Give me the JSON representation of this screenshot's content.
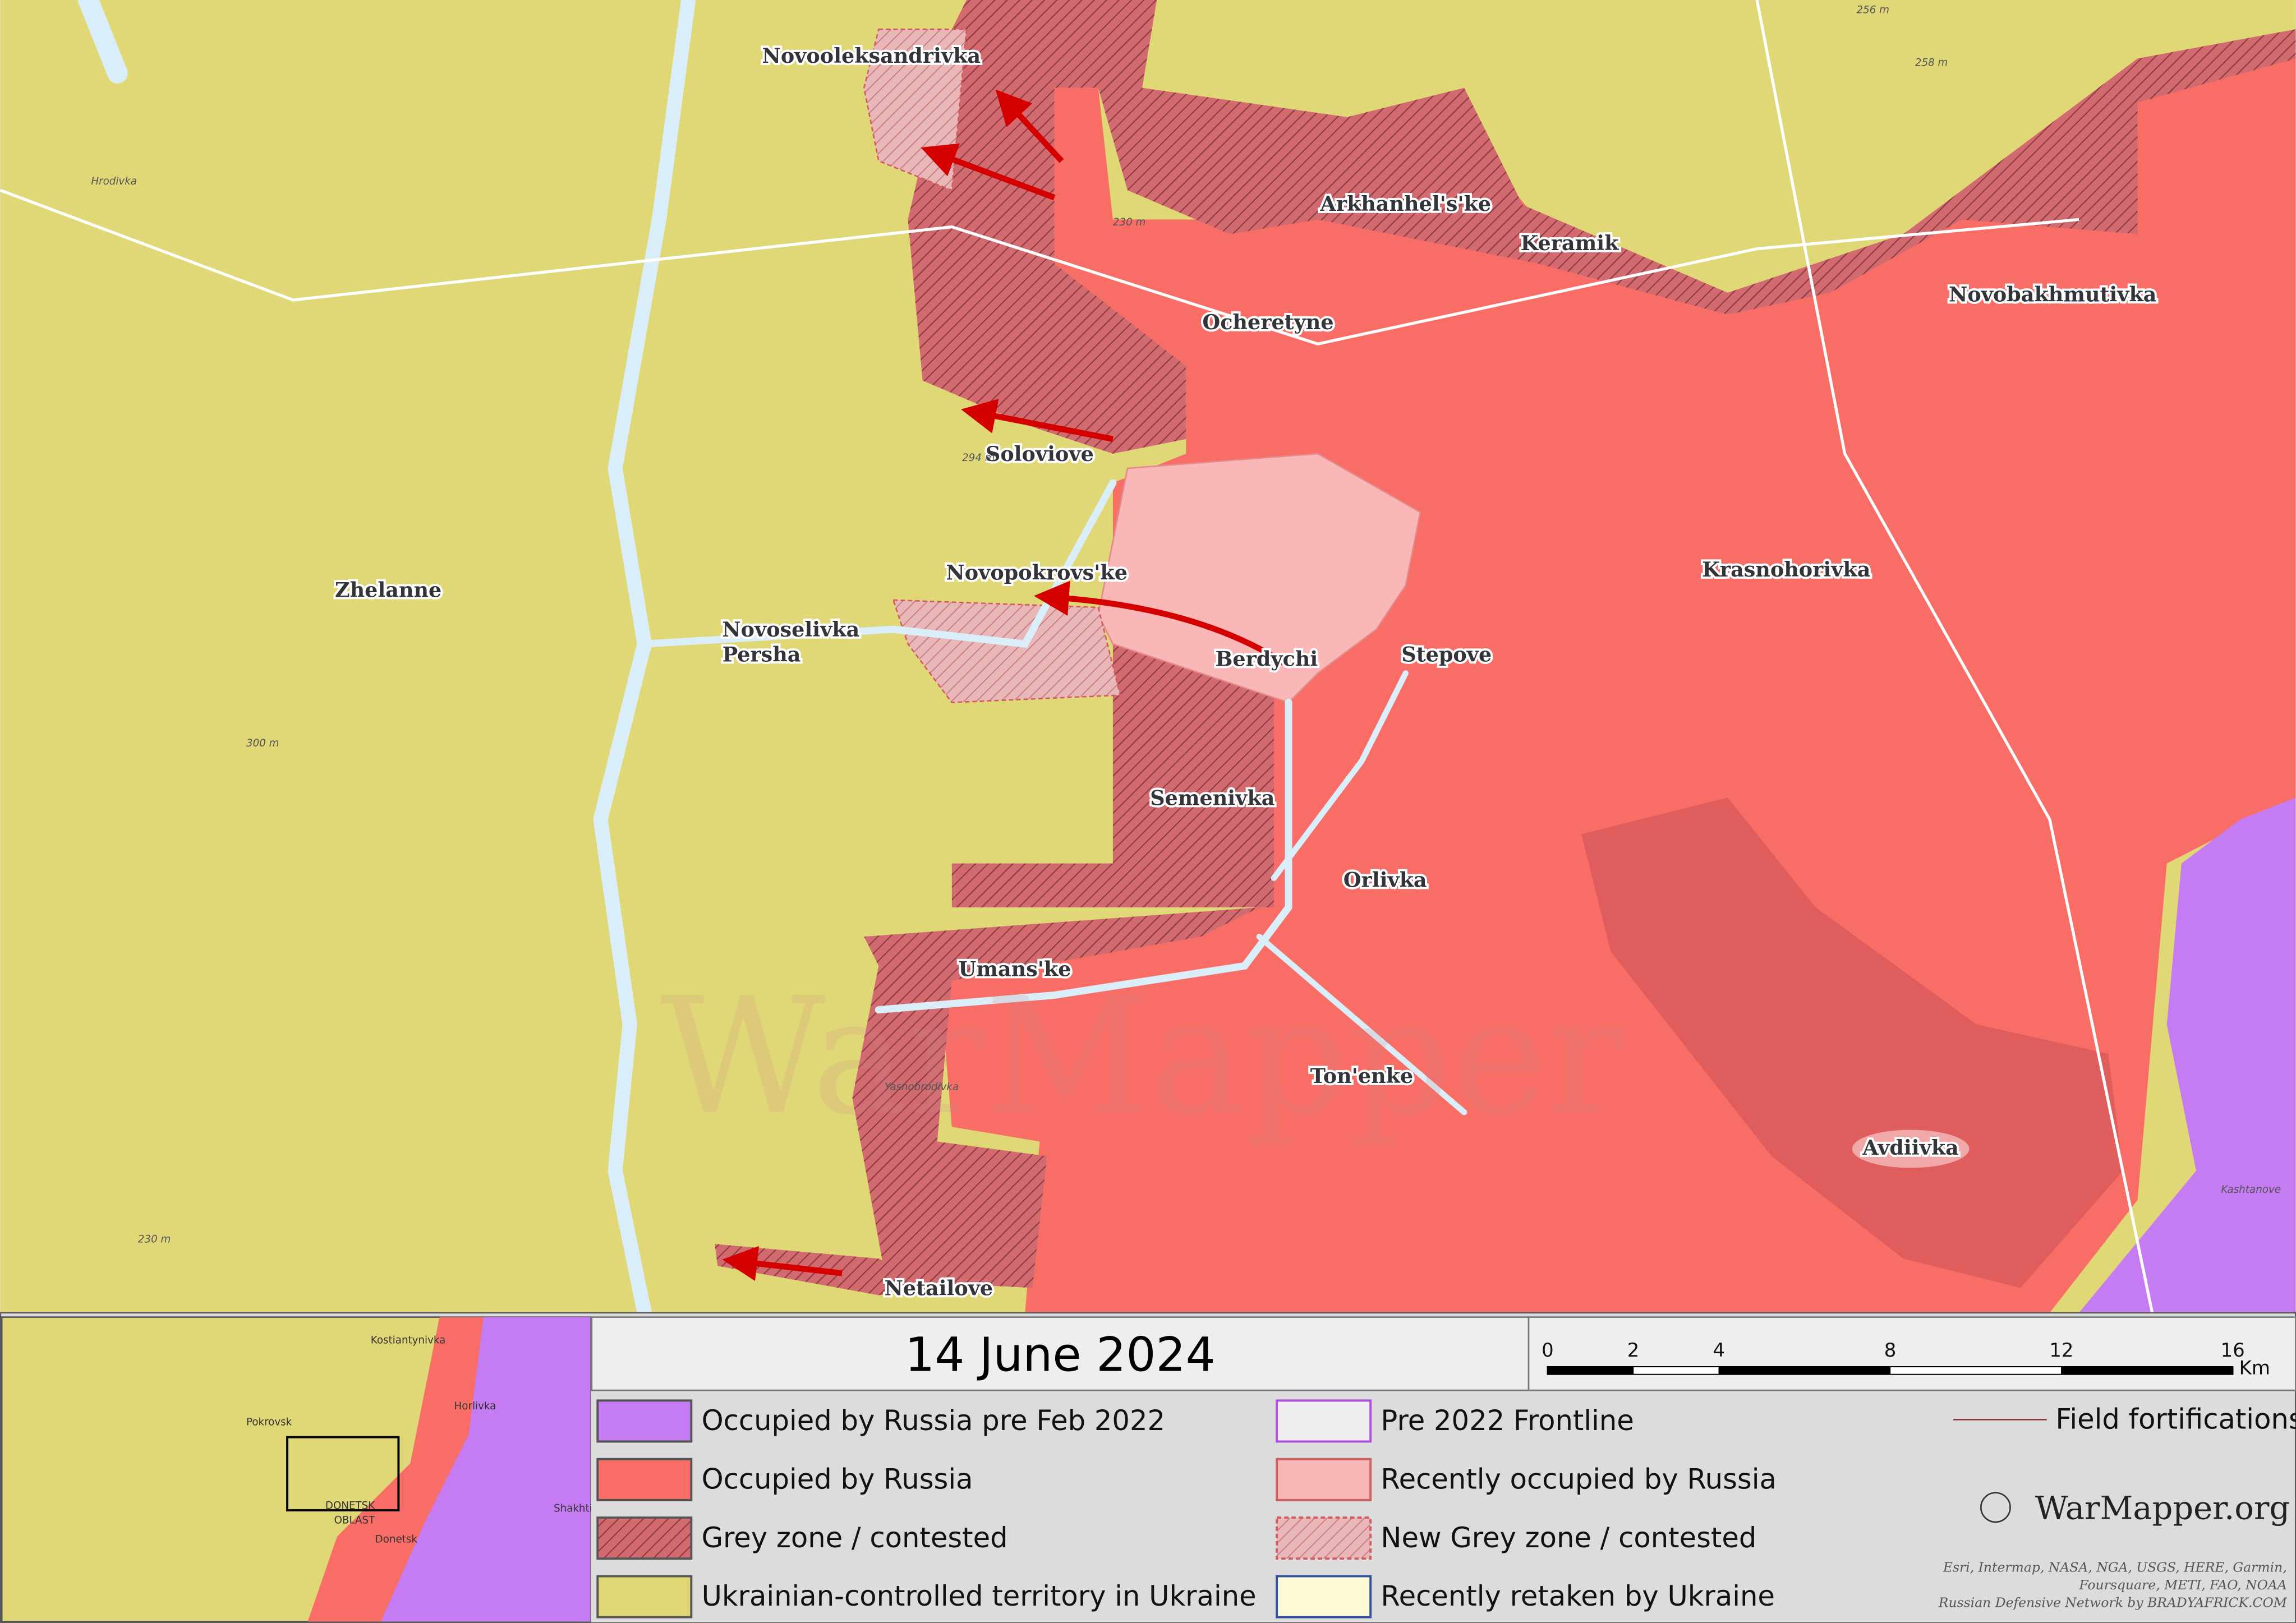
{
  "map": {
    "places": [
      "Novooleksandrivka",
      "Arkhanhel's'ke",
      "Keramik",
      "Ocheretyne",
      "Novobakhmutivka",
      "Soloviove",
      "Novopokrovs'ke",
      "Krasnohorivka",
      "Zhelanne",
      "Berdychi",
      "Stepove",
      "Semenivka",
      "Orlivka",
      "Umans'ke",
      "Ton'enke",
      "Avdiivka",
      "Netailove"
    ],
    "novoselivka_persha": [
      "Novoselivka",
      "Persha"
    ],
    "minor_places": [
      "Hrodivka",
      "Yasnobrodivka",
      "Kashtanove"
    ],
    "elevations": [
      "256 m",
      "258 m",
      "230 m",
      "294 m",
      "300 m",
      "230 m"
    ],
    "watermark": "WarMapper"
  },
  "inset": {
    "labels": [
      "Kostiantynivka",
      "Pokrovsk",
      "Horlivka",
      "DONETSK",
      "OBLAST",
      "Donetsk",
      "Shakhti"
    ]
  },
  "footer": {
    "date": "14 June 2024",
    "scale": {
      "ticks": [
        0,
        2,
        4,
        8,
        12,
        16
      ],
      "unit": "Km"
    },
    "legend": [
      "Occupied by Russia pre Feb 2022",
      "Occupied by Russia",
      "Grey zone / contested",
      "Ukrainian-controlled territory in Ukraine",
      "Pre 2022 Frontline",
      "Recently occupied by Russia",
      "New Grey zone / contested",
      "Recently retaken by Ukraine"
    ],
    "fortifications": "Field fortifications",
    "brand": "WarMapper.org",
    "credits": [
      "Esri, Intermap, NASA, NGA, USGS, HERE, Garmin,",
      "Foursquare, METI, FAO, NOAA",
      "Russian Defensive Network by BRADYAFRICK.COM"
    ]
  }
}
